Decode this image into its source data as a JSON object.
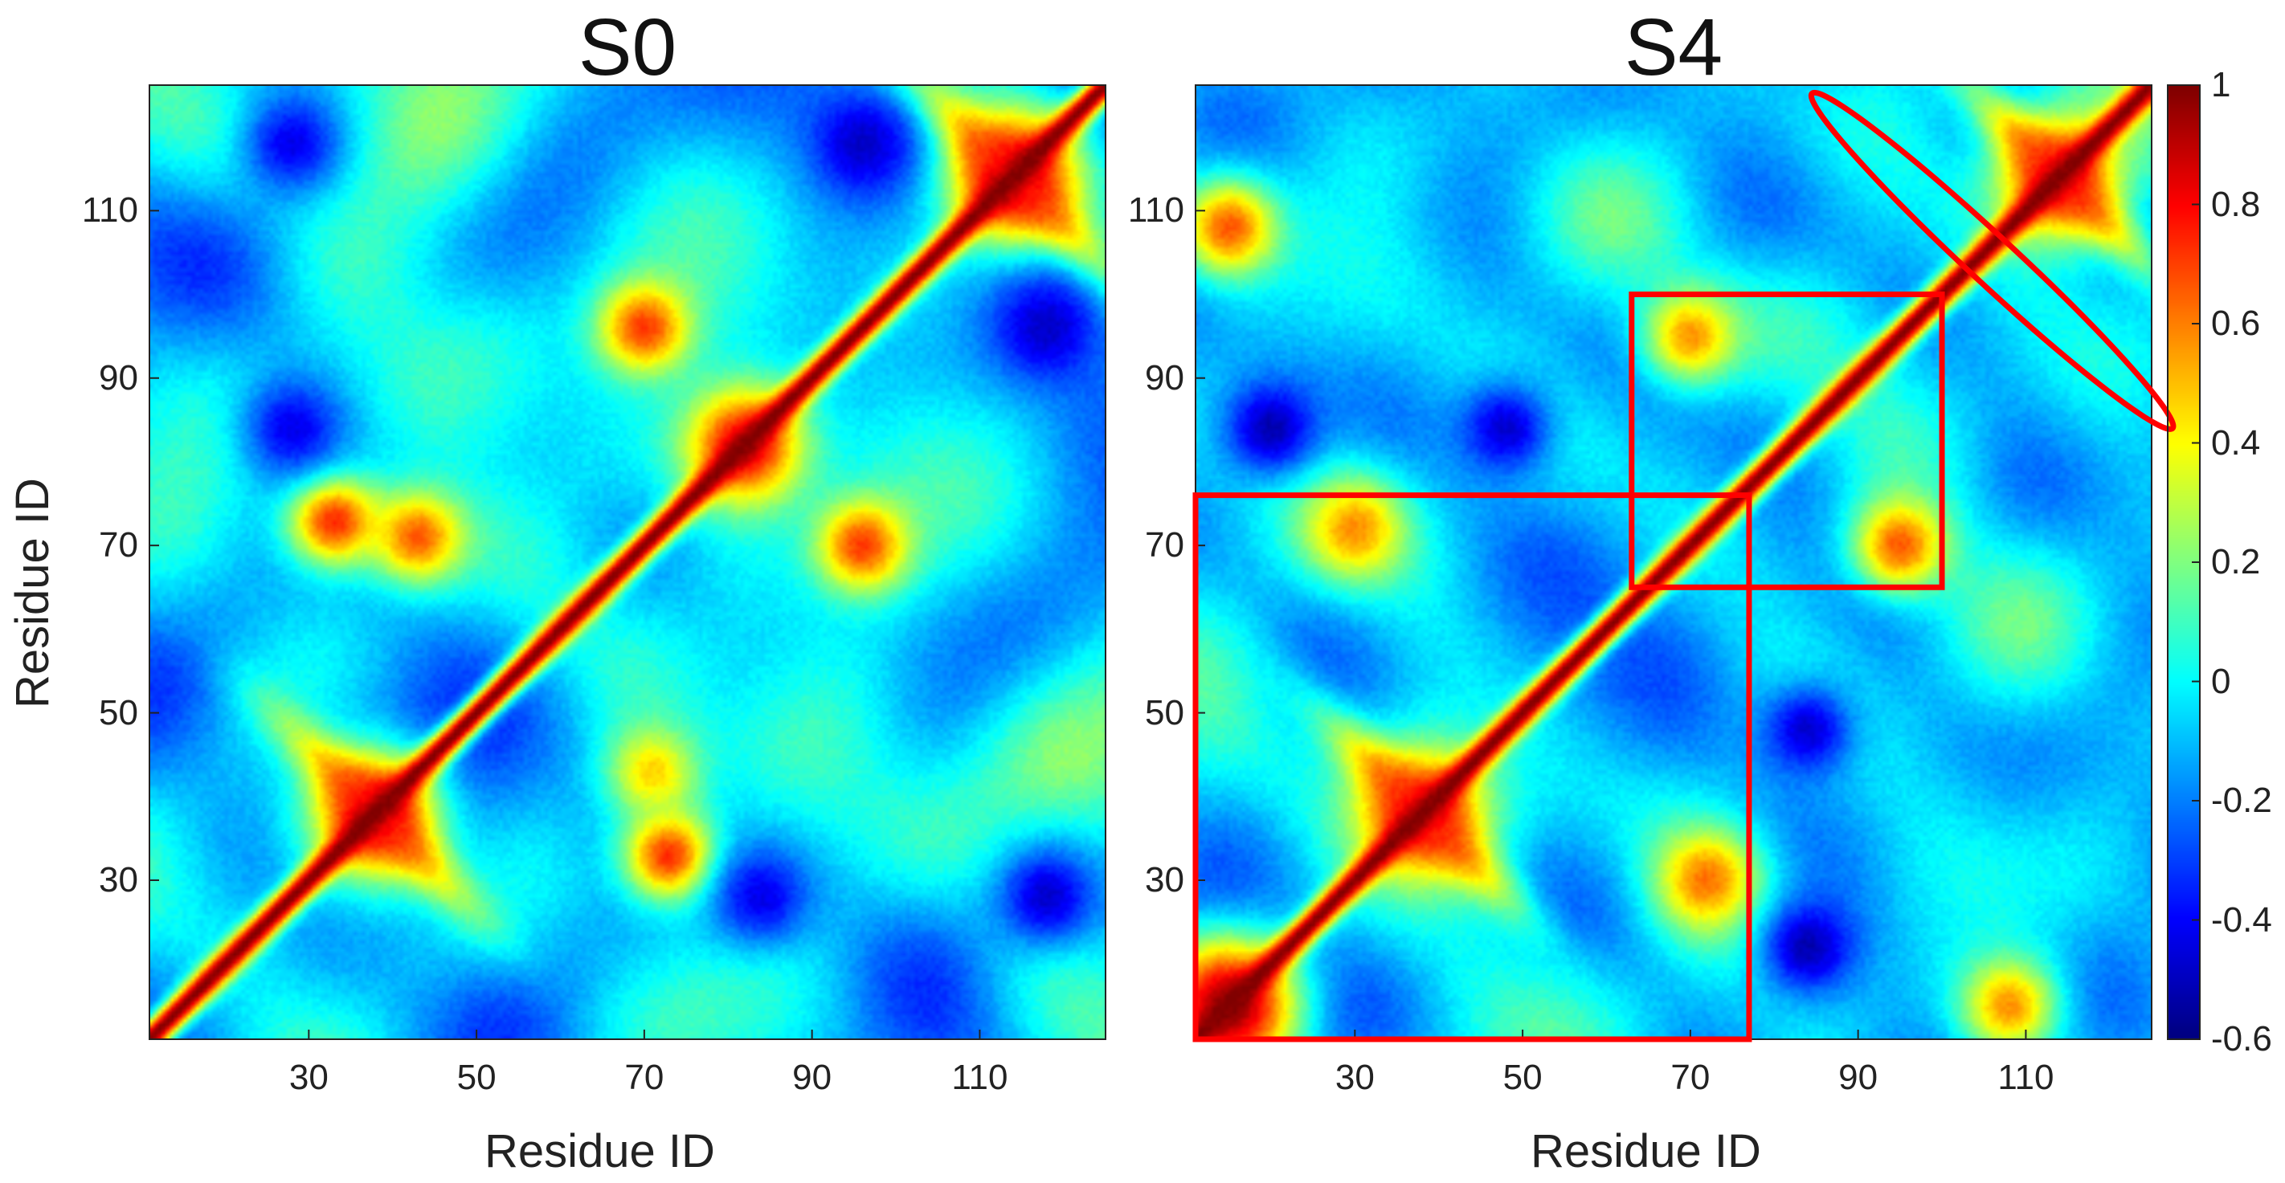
{
  "chart_data": [
    {
      "type": "heatmap",
      "title": "S0",
      "xlabel": "Residue ID",
      "ylabel": "Residue ID",
      "xlim": [
        11,
        125
      ],
      "ylim": [
        11,
        125
      ],
      "x_ticks": [
        30,
        50,
        70,
        90,
        110
      ],
      "y_ticks": [
        30,
        50,
        70,
        90,
        110
      ],
      "diagonal_value": 1,
      "features": [
        {
          "x": 38,
          "y": 38,
          "value": 1.0,
          "desc": "cross on diagonal"
        },
        {
          "x": 114,
          "y": 114,
          "value": 1.0,
          "desc": "cross on diagonal"
        },
        {
          "x": 82,
          "y": 82,
          "value": 0.9,
          "desc": "wide diagonal region"
        },
        {
          "x": 70,
          "y": 96,
          "value": 0.75
        },
        {
          "x": 96,
          "y": 70,
          "value": 0.75
        },
        {
          "x": 33,
          "y": 73,
          "value": 0.8
        },
        {
          "x": 73,
          "y": 33,
          "value": 0.8
        },
        {
          "x": 43,
          "y": 71,
          "value": 0.7
        },
        {
          "x": 71,
          "y": 43,
          "value": 0.5
        },
        {
          "x": 28,
          "y": 84,
          "value": -0.45
        },
        {
          "x": 84,
          "y": 28,
          "value": -0.45
        },
        {
          "x": 118,
          "y": 28,
          "value": -0.5
        },
        {
          "x": 28,
          "y": 118,
          "value": -0.45
        },
        {
          "x": 118,
          "y": 96,
          "value": -0.5
        },
        {
          "x": 96,
          "y": 118,
          "value": -0.5
        }
      ]
    },
    {
      "type": "heatmap",
      "title": "S4",
      "xlabel": "Residue ID",
      "ylabel": "Residue ID",
      "xlim": [
        11,
        125
      ],
      "ylim": [
        11,
        125
      ],
      "x_ticks": [
        30,
        50,
        70,
        90,
        110
      ],
      "y_ticks": [
        30,
        50,
        70,
        90,
        110
      ],
      "diagonal_value": 1,
      "features": [
        {
          "x": 38,
          "y": 38,
          "value": 0.9,
          "desc": "cross on diagonal"
        },
        {
          "x": 114,
          "y": 114,
          "value": 0.9,
          "desc": "cross on diagonal"
        },
        {
          "x": 15,
          "y": 15,
          "value": 1.0,
          "desc": "wide diagonal region"
        },
        {
          "x": 15,
          "y": 108,
          "value": 0.7
        },
        {
          "x": 108,
          "y": 15,
          "value": 0.6
        },
        {
          "x": 30,
          "y": 72,
          "value": 0.6
        },
        {
          "x": 72,
          "y": 30,
          "value": 0.65
        },
        {
          "x": 95,
          "y": 70,
          "value": 0.7
        },
        {
          "x": 70,
          "y": 95,
          "value": 0.6
        },
        {
          "x": 20,
          "y": 84,
          "value": -0.55
        },
        {
          "x": 48,
          "y": 84,
          "value": -0.5
        },
        {
          "x": 84,
          "y": 22,
          "value": -0.55
        },
        {
          "x": 84,
          "y": 48,
          "value": -0.5
        }
      ],
      "annotations": [
        {
          "type": "rectangle",
          "color": "#ff0000",
          "x_range": [
            11,
            77
          ],
          "y_range": [
            11,
            76
          ]
        },
        {
          "type": "rectangle",
          "color": "#ff0000",
          "x_range": [
            63,
            100
          ],
          "y_range": [
            65,
            100
          ]
        },
        {
          "type": "ellipse",
          "color": "#ff0000",
          "desc": "along diagonal",
          "center": [
            106,
            104
          ],
          "from": [
            84,
            124
          ],
          "to": [
            127,
            84
          ]
        }
      ]
    }
  ],
  "colorbar": {
    "colormap": "jet",
    "range": [
      -0.6,
      1
    ],
    "tick_labels": [
      "1",
      "0.8",
      "0.6",
      "0.4",
      "0.2",
      "0",
      "-0.2",
      "-0.4",
      "-0.6"
    ]
  }
}
